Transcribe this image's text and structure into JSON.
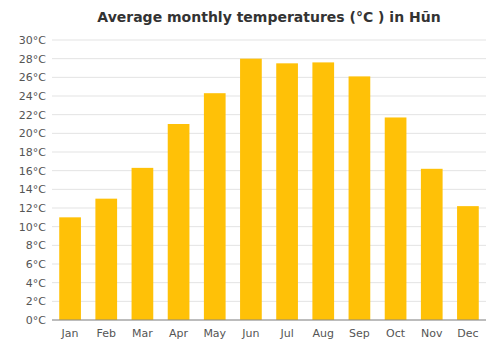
{
  "chart_data": {
    "type": "bar",
    "title": "Average monthly temperatures (°C ) in Hūn",
    "categories": [
      "Jan",
      "Feb",
      "Mar",
      "Apr",
      "May",
      "Jun",
      "Jul",
      "Aug",
      "Sep",
      "Oct",
      "Nov",
      "Dec"
    ],
    "values": [
      11,
      13,
      16.3,
      21,
      24.3,
      28,
      27.5,
      27.6,
      26.1,
      21.7,
      16.2,
      12.2
    ],
    "color": "#FFC107",
    "ylim": [
      0,
      30
    ],
    "yticks": [
      {
        "value": 0,
        "label": "0°C"
      },
      {
        "value": 2,
        "label": "2°C"
      },
      {
        "value": 4,
        "label": "4°C"
      },
      {
        "value": 6,
        "label": "6°C"
      },
      {
        "value": 8,
        "label": "8°C"
      },
      {
        "value": 10,
        "label": "10°C"
      },
      {
        "value": 12,
        "label": "12°C"
      },
      {
        "value": 14,
        "label": "14°C"
      },
      {
        "value": 16,
        "label": "16°C"
      },
      {
        "value": 18,
        "label": "18°C"
      },
      {
        "value": 20,
        "label": "20°C"
      },
      {
        "value": 22,
        "label": "22°C"
      },
      {
        "value": 24,
        "label": "24°C"
      },
      {
        "value": 26,
        "label": "26°C"
      },
      {
        "value": 28,
        "label": "28°C"
      },
      {
        "value": 30,
        "label": "30°C"
      }
    ],
    "grid": true
  }
}
